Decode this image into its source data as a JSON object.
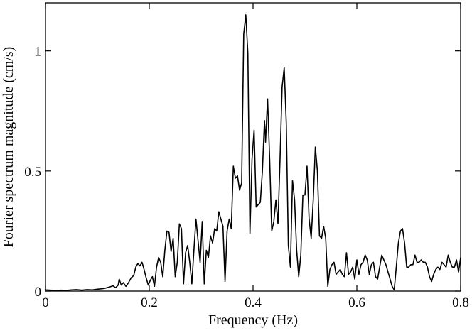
{
  "chart_data": {
    "type": "line",
    "title": "",
    "xlabel": "Frequency (Hz)",
    "ylabel": "Fourier spectrum magnitude (cm/s)",
    "xlim": [
      0,
      0.8
    ],
    "ylim": [
      0,
      1.2
    ],
    "grid": false,
    "legend": "none",
    "x_ticks": [
      {
        "value": 0,
        "label": "0"
      },
      {
        "value": 0.2,
        "label": "0.2"
      },
      {
        "value": 0.4,
        "label": "0.4"
      },
      {
        "value": 0.6,
        "label": "0.6"
      },
      {
        "value": 0.8,
        "label": "0.8"
      }
    ],
    "y_ticks": [
      {
        "value": 0,
        "label": "0"
      },
      {
        "value": 0.5,
        "label": "0.5"
      },
      {
        "value": 1,
        "label": "1"
      }
    ],
    "series": [
      {
        "color": "#000000",
        "points": [
          [
            0.0,
            0.005
          ],
          [
            0.01,
            0.004
          ],
          [
            0.02,
            0.003
          ],
          [
            0.03,
            0.004
          ],
          [
            0.04,
            0.003
          ],
          [
            0.05,
            0.005
          ],
          [
            0.06,
            0.006
          ],
          [
            0.07,
            0.004
          ],
          [
            0.08,
            0.006
          ],
          [
            0.09,
            0.005
          ],
          [
            0.1,
            0.008
          ],
          [
            0.11,
            0.01
          ],
          [
            0.115,
            0.012
          ],
          [
            0.12,
            0.015
          ],
          [
            0.125,
            0.018
          ],
          [
            0.13,
            0.022
          ],
          [
            0.135,
            0.014
          ],
          [
            0.14,
            0.025
          ],
          [
            0.142,
            0.05
          ],
          [
            0.146,
            0.025
          ],
          [
            0.15,
            0.035
          ],
          [
            0.155,
            0.02
          ],
          [
            0.16,
            0.035
          ],
          [
            0.165,
            0.055
          ],
          [
            0.17,
            0.065
          ],
          [
            0.174,
            0.1
          ],
          [
            0.178,
            0.115
          ],
          [
            0.182,
            0.105
          ],
          [
            0.186,
            0.12
          ],
          [
            0.19,
            0.09
          ],
          [
            0.194,
            0.055
          ],
          [
            0.198,
            0.025
          ],
          [
            0.202,
            0.045
          ],
          [
            0.206,
            0.06
          ],
          [
            0.21,
            0.02
          ],
          [
            0.214,
            0.1
          ],
          [
            0.218,
            0.14
          ],
          [
            0.222,
            0.12
          ],
          [
            0.226,
            0.06
          ],
          [
            0.23,
            0.17
          ],
          [
            0.234,
            0.25
          ],
          [
            0.238,
            0.245
          ],
          [
            0.242,
            0.165
          ],
          [
            0.246,
            0.22
          ],
          [
            0.25,
            0.06
          ],
          [
            0.254,
            0.12
          ],
          [
            0.258,
            0.28
          ],
          [
            0.262,
            0.26
          ],
          [
            0.266,
            0.03
          ],
          [
            0.27,
            0.16
          ],
          [
            0.274,
            0.19
          ],
          [
            0.278,
            0.12
          ],
          [
            0.282,
            0.03
          ],
          [
            0.286,
            0.17
          ],
          [
            0.29,
            0.3
          ],
          [
            0.294,
            0.21
          ],
          [
            0.298,
            0.12
          ],
          [
            0.302,
            0.29
          ],
          [
            0.306,
            0.03
          ],
          [
            0.31,
            0.17
          ],
          [
            0.314,
            0.14
          ],
          [
            0.318,
            0.23
          ],
          [
            0.322,
            0.2
          ],
          [
            0.326,
            0.26
          ],
          [
            0.33,
            0.25
          ],
          [
            0.334,
            0.33
          ],
          [
            0.338,
            0.3
          ],
          [
            0.342,
            0.27
          ],
          [
            0.346,
            0.04
          ],
          [
            0.35,
            0.25
          ],
          [
            0.354,
            0.3
          ],
          [
            0.358,
            0.26
          ],
          [
            0.362,
            0.52
          ],
          [
            0.366,
            0.47
          ],
          [
            0.37,
            0.48
          ],
          [
            0.374,
            0.42
          ],
          [
            0.378,
            0.45
          ],
          [
            0.382,
            1.07
          ],
          [
            0.386,
            1.15
          ],
          [
            0.39,
            0.99
          ],
          [
            0.394,
            0.24
          ],
          [
            0.398,
            0.55
          ],
          [
            0.402,
            0.67
          ],
          [
            0.406,
            0.35
          ],
          [
            0.41,
            0.36
          ],
          [
            0.414,
            0.37
          ],
          [
            0.418,
            0.5
          ],
          [
            0.422,
            0.71
          ],
          [
            0.424,
            0.62
          ],
          [
            0.428,
            0.8
          ],
          [
            0.432,
            0.55
          ],
          [
            0.436,
            0.25
          ],
          [
            0.44,
            0.29
          ],
          [
            0.444,
            0.38
          ],
          [
            0.448,
            0.28
          ],
          [
            0.452,
            0.55
          ],
          [
            0.456,
            0.85
          ],
          [
            0.46,
            0.93
          ],
          [
            0.464,
            0.7
          ],
          [
            0.468,
            0.19
          ],
          [
            0.472,
            0.1
          ],
          [
            0.476,
            0.46
          ],
          [
            0.48,
            0.38
          ],
          [
            0.484,
            0.17
          ],
          [
            0.488,
            0.06
          ],
          [
            0.492,
            0.15
          ],
          [
            0.496,
            0.4
          ],
          [
            0.5,
            0.4
          ],
          [
            0.504,
            0.52
          ],
          [
            0.508,
            0.3
          ],
          [
            0.512,
            0.22
          ],
          [
            0.516,
            0.38
          ],
          [
            0.52,
            0.6
          ],
          [
            0.524,
            0.5
          ],
          [
            0.528,
            0.23
          ],
          [
            0.532,
            0.22
          ],
          [
            0.536,
            0.27
          ],
          [
            0.54,
            0.22
          ],
          [
            0.544,
            0.02
          ],
          [
            0.548,
            0.09
          ],
          [
            0.552,
            0.11
          ],
          [
            0.556,
            0.12
          ],
          [
            0.56,
            0.07
          ],
          [
            0.564,
            0.08
          ],
          [
            0.568,
            0.09
          ],
          [
            0.572,
            0.07
          ],
          [
            0.576,
            0.06
          ],
          [
            0.58,
            0.16
          ],
          [
            0.584,
            0.07
          ],
          [
            0.588,
            0.08
          ],
          [
            0.592,
            0.1
          ],
          [
            0.596,
            0.05
          ],
          [
            0.6,
            0.13
          ],
          [
            0.604,
            0.07
          ],
          [
            0.608,
            0.11
          ],
          [
            0.612,
            0.12
          ],
          [
            0.616,
            0.15
          ],
          [
            0.62,
            0.13
          ],
          [
            0.624,
            0.07
          ],
          [
            0.628,
            0.11
          ],
          [
            0.632,
            0.12
          ],
          [
            0.636,
            0.06
          ],
          [
            0.64,
            0.05
          ],
          [
            0.644,
            0.1
          ],
          [
            0.648,
            0.15
          ],
          [
            0.652,
            0.13
          ],
          [
            0.656,
            0.11
          ],
          [
            0.66,
            0.08
          ],
          [
            0.664,
            0.05
          ],
          [
            0.668,
            0.02
          ],
          [
            0.672,
            0.005
          ],
          [
            0.676,
            0.1
          ],
          [
            0.68,
            0.2
          ],
          [
            0.684,
            0.25
          ],
          [
            0.688,
            0.26
          ],
          [
            0.692,
            0.2
          ],
          [
            0.696,
            0.1
          ],
          [
            0.7,
            0.1
          ],
          [
            0.704,
            0.11
          ],
          [
            0.708,
            0.11
          ],
          [
            0.712,
            0.15
          ],
          [
            0.716,
            0.12
          ],
          [
            0.72,
            0.12
          ],
          [
            0.724,
            0.13
          ],
          [
            0.728,
            0.12
          ],
          [
            0.732,
            0.12
          ],
          [
            0.736,
            0.1
          ],
          [
            0.74,
            0.06
          ],
          [
            0.744,
            0.04
          ],
          [
            0.748,
            0.07
          ],
          [
            0.752,
            0.09
          ],
          [
            0.756,
            0.1
          ],
          [
            0.76,
            0.09
          ],
          [
            0.764,
            0.12
          ],
          [
            0.768,
            0.11
          ],
          [
            0.772,
            0.1
          ],
          [
            0.776,
            0.15
          ],
          [
            0.78,
            0.12
          ],
          [
            0.784,
            0.1
          ],
          [
            0.788,
            0.1
          ],
          [
            0.792,
            0.13
          ],
          [
            0.796,
            0.08
          ],
          [
            0.8,
            0.14
          ]
        ]
      }
    ]
  }
}
